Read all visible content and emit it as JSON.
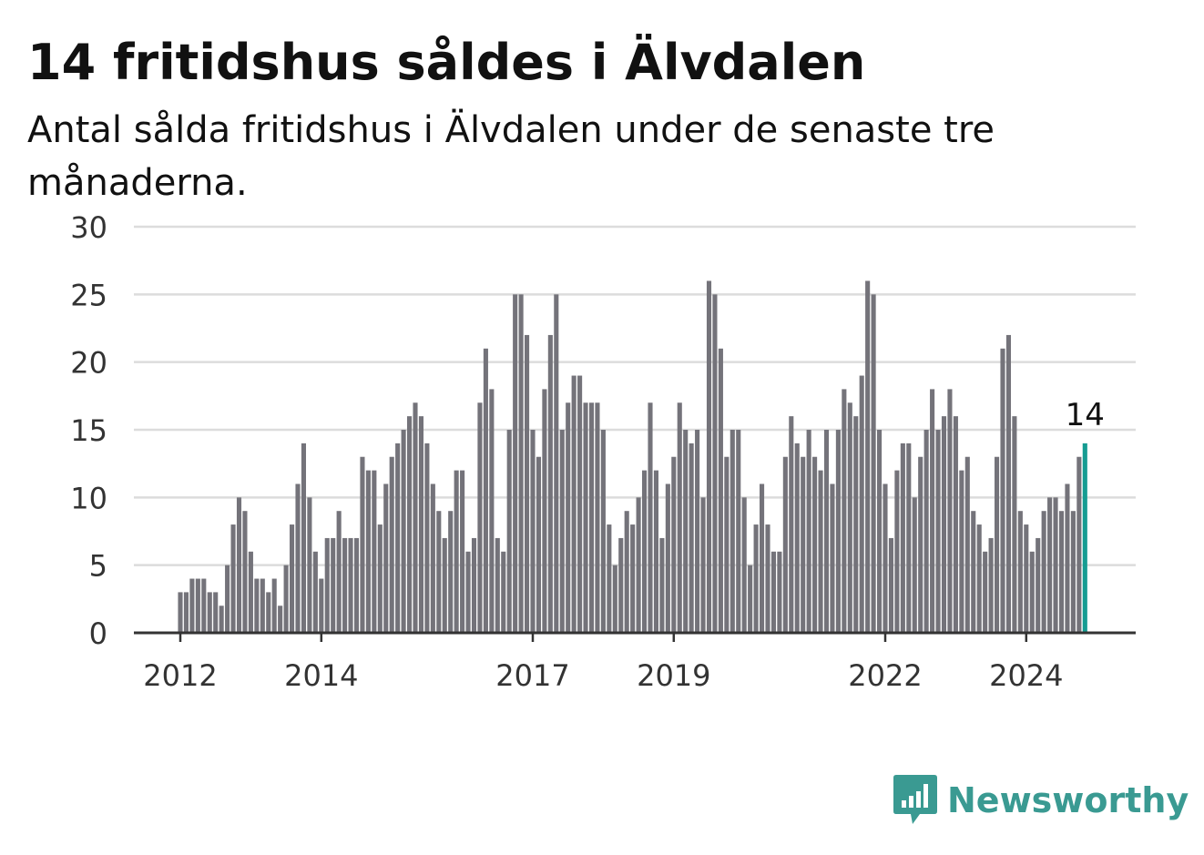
{
  "header": {
    "title": "14 fritidshus såldes i Älvdalen",
    "subtitle": "Antal sålda fritidshus i Älvdalen under de senaste tre månaderna."
  },
  "brand": {
    "name": "Newsworthy",
    "color": "#3a9a92",
    "icon": "newsworthy-logo-icon"
  },
  "chart_data": {
    "type": "bar",
    "start_month": "2012-01",
    "x_tick_labels": [
      "2012",
      "2014",
      "2017",
      "2019",
      "2022",
      "2024"
    ],
    "y_ticks": [
      0,
      5,
      10,
      15,
      20,
      25,
      30
    ],
    "ylim": [
      0,
      30
    ],
    "grid": true,
    "bar_color": "#74737a",
    "highlight_color": "#169c92",
    "highlight_label": "14",
    "values": [
      3,
      3,
      4,
      4,
      4,
      3,
      3,
      2,
      5,
      8,
      10,
      9,
      6,
      4,
      4,
      3,
      4,
      2,
      5,
      8,
      11,
      14,
      10,
      6,
      4,
      7,
      7,
      9,
      7,
      7,
      7,
      13,
      12,
      12,
      8,
      11,
      13,
      14,
      15,
      16,
      17,
      16,
      14,
      11,
      9,
      7,
      9,
      12,
      12,
      6,
      7,
      17,
      21,
      18,
      7,
      6,
      15,
      25,
      25,
      22,
      15,
      13,
      18,
      22,
      25,
      15,
      17,
      19,
      19,
      17,
      17,
      17,
      15,
      8,
      5,
      7,
      9,
      8,
      10,
      12,
      17,
      12,
      7,
      11,
      13,
      17,
      15,
      14,
      15,
      10,
      26,
      25,
      21,
      13,
      15,
      15,
      10,
      5,
      8,
      11,
      8,
      6,
      6,
      13,
      16,
      14,
      13,
      15,
      13,
      12,
      15,
      11,
      15,
      18,
      17,
      16,
      19,
      26,
      25,
      15,
      11,
      7,
      12,
      14,
      14,
      10,
      13,
      15,
      18,
      15,
      16,
      18,
      16,
      12,
      13,
      9,
      8,
      6,
      7,
      13,
      21,
      22,
      16,
      9,
      8,
      6,
      7,
      9,
      10,
      10,
      9,
      11,
      9,
      13,
      14
    ]
  }
}
